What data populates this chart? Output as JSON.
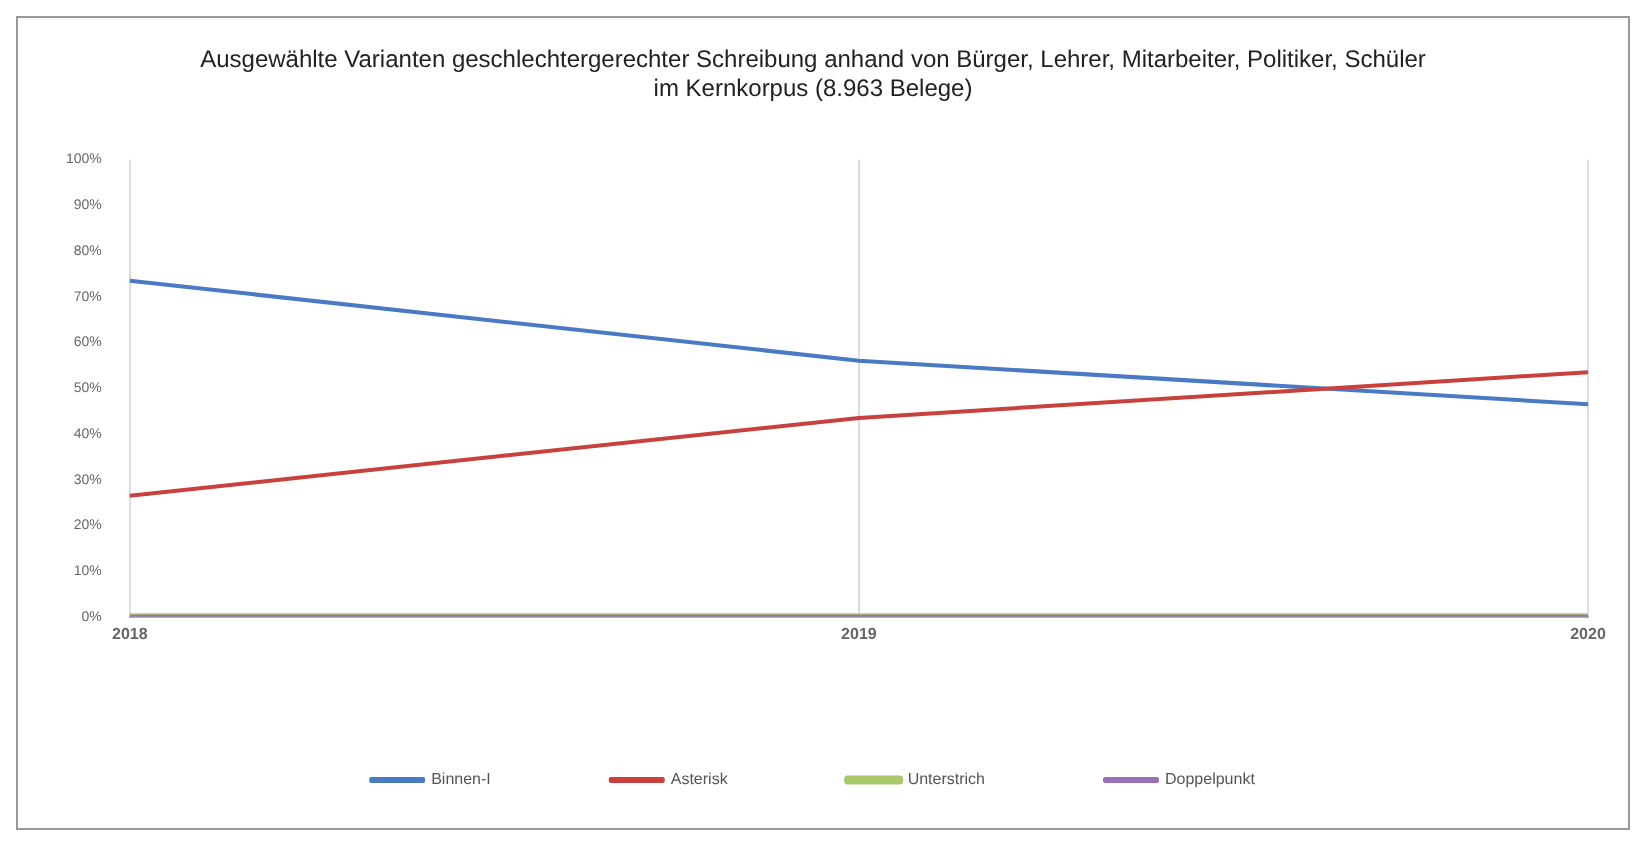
{
  "chart_data": {
    "type": "line",
    "title": "Ausgewählte Varianten geschlechtergerechter Schreibung anhand von Bürger, Lehrer, Mitarbeiter, Politiker, Schüler\nim Kernkorpus (8.963 Belege)",
    "categories": [
      "2018",
      "2019",
      "2020"
    ],
    "series": [
      {
        "name": "Binnen-I",
        "color": "#4a7ac4",
        "values": [
          73.5,
          56,
          46.5
        ]
      },
      {
        "name": "Asterisk",
        "color": "#c8413c",
        "values": [
          26.5,
          43.5,
          53.5
        ]
      },
      {
        "name": "Unterstrich",
        "color": "#a8c86a",
        "values": [
          0,
          0,
          0
        ]
      },
      {
        "name": "Doppelpunkt",
        "color": "#9b6fb5",
        "values": [
          0,
          0,
          0
        ]
      }
    ],
    "ylim": [
      0,
      100
    ],
    "yticks": [
      {
        "value": 0,
        "label": "0%"
      },
      {
        "value": 10,
        "label": "10%"
      },
      {
        "value": 20,
        "label": "20%"
      },
      {
        "value": 30,
        "label": "30%"
      },
      {
        "value": 40,
        "label": "40%"
      },
      {
        "value": 50,
        "label": "50%"
      },
      {
        "value": 60,
        "label": "60%"
      },
      {
        "value": 70,
        "label": "70%"
      },
      {
        "value": 80,
        "label": "80%"
      },
      {
        "value": 90,
        "label": "90%"
      },
      {
        "value": 100,
        "label": "100%"
      }
    ],
    "grid": "x",
    "legend": "bottom",
    "marker": "none",
    "line_style": "solid"
  }
}
